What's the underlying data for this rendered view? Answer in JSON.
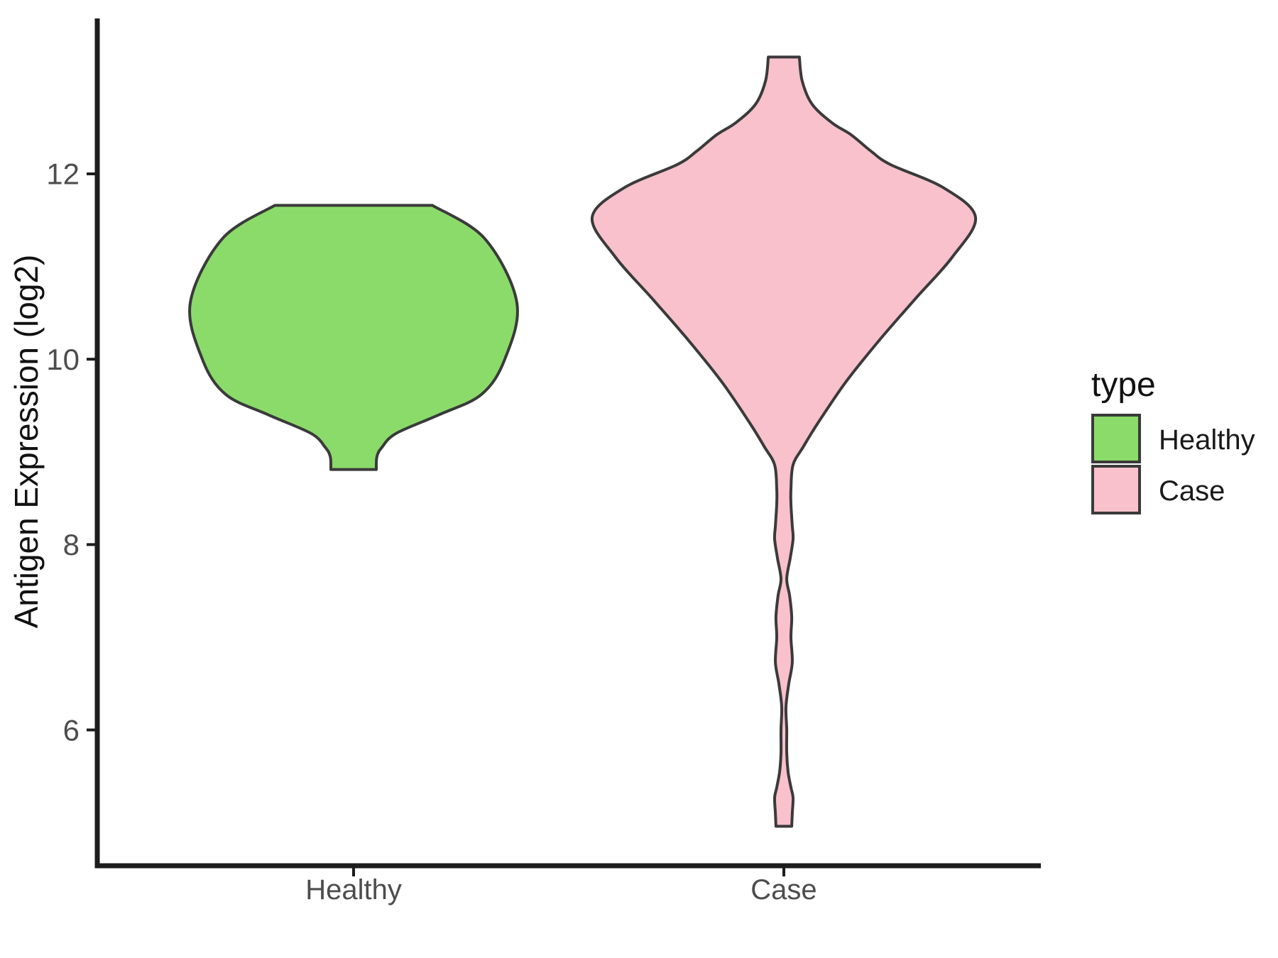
{
  "figure": {
    "background": "#ffffff"
  },
  "y_axis": {
    "title": "Antigen Expression (log2)",
    "tick_labels": [
      "12",
      "10",
      "8",
      "6"
    ],
    "tick_values": [
      12,
      10,
      8,
      6
    ]
  },
  "x_axis": {
    "categories": [
      "Healthy",
      "Case"
    ]
  },
  "legend": {
    "title": "type",
    "items": [
      {
        "label": "Healthy",
        "color": "#8BDB6A"
      },
      {
        "label": "Case",
        "color": "#F8C1CC"
      }
    ]
  },
  "style": {
    "outline_color": "#3a3a3a",
    "axis_color": "#1c1c1c",
    "tick_label_color": "#4d4d4d",
    "title_color": "#111111"
  },
  "chart_data": {
    "type": "violin",
    "title": "",
    "xlabel": "",
    "ylabel": "Antigen Expression (log2)",
    "categories": [
      "Healthy",
      "Case"
    ],
    "ylim": [
      4.5,
      13.7
    ],
    "y_ticks": [
      6,
      8,
      10,
      12
    ],
    "grid": false,
    "legend_position": "right",
    "legend_title": "type",
    "violins": [
      {
        "category": "Healthy",
        "fill": "#8BDB6A",
        "min": 8.81,
        "max": 11.66,
        "peak_value": 10.61,
        "flat_top": true,
        "flat_bottom": true,
        "profile": [
          [
            11.66,
            0.483
          ],
          [
            11.3,
            0.804
          ],
          [
            10.61,
            1.0
          ],
          [
            10.0,
            0.926
          ],
          [
            9.62,
            0.783
          ],
          [
            9.4,
            0.522
          ],
          [
            9.2,
            0.261
          ],
          [
            9.05,
            0.174
          ],
          [
            8.95,
            0.143
          ],
          [
            8.81,
            0.139
          ]
        ]
      },
      {
        "category": "Case",
        "fill": "#F8C1CC",
        "min": 4.96,
        "max": 13.26,
        "peak_value": 11.53,
        "flat_top": true,
        "flat_bottom": true,
        "profile": [
          [
            13.26,
            0.081
          ],
          [
            13.0,
            0.096
          ],
          [
            12.75,
            0.148
          ],
          [
            12.55,
            0.252
          ],
          [
            12.42,
            0.352
          ],
          [
            12.25,
            0.452
          ],
          [
            12.1,
            0.556
          ],
          [
            11.85,
            0.833
          ],
          [
            11.53,
            1.0
          ],
          [
            11.1,
            0.878
          ],
          [
            10.65,
            0.685
          ],
          [
            10.2,
            0.496
          ],
          [
            9.75,
            0.322
          ],
          [
            9.3,
            0.174
          ],
          [
            9.05,
            0.1
          ],
          [
            8.86,
            0.048
          ],
          [
            8.6,
            0.037
          ],
          [
            8.44,
            0.037
          ],
          [
            8.2,
            0.044
          ],
          [
            8.06,
            0.048
          ],
          [
            7.85,
            0.033
          ],
          [
            7.63,
            0.015
          ],
          [
            7.45,
            0.03
          ],
          [
            7.22,
            0.041
          ],
          [
            7.0,
            0.037
          ],
          [
            6.73,
            0.044
          ],
          [
            6.5,
            0.026
          ],
          [
            6.25,
            0.011
          ],
          [
            6.0,
            0.015
          ],
          [
            5.75,
            0.015
          ],
          [
            5.55,
            0.022
          ],
          [
            5.38,
            0.037
          ],
          [
            5.27,
            0.048
          ],
          [
            5.1,
            0.044
          ],
          [
            4.96,
            0.041
          ]
        ]
      }
    ]
  }
}
